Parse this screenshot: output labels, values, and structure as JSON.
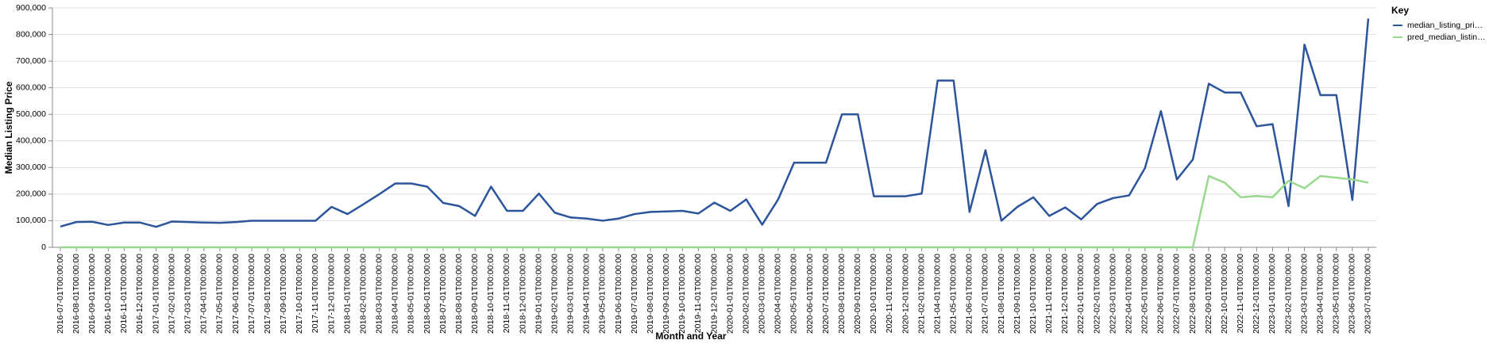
{
  "chart_data": {
    "type": "line",
    "x_label": "Month and Year",
    "y_label": "Median Listing Price",
    "legend_title": "Key",
    "legend": "right",
    "grid": true,
    "categories": [
      "2016-07-01T00:00:00",
      "2016-08-01T00:00:00",
      "2016-09-01T00:00:00",
      "2016-10-01T00:00:00",
      "2016-11-01T00:00:00",
      "2016-12-01T00:00:00",
      "2017-01-01T00:00:00",
      "2017-02-01T00:00:00",
      "2017-03-01T00:00:00",
      "2017-04-01T00:00:00",
      "2017-05-01T00:00:00",
      "2017-06-01T00:00:00",
      "2017-07-01T00:00:00",
      "2017-08-01T00:00:00",
      "2017-09-01T00:00:00",
      "2017-10-01T00:00:00",
      "2017-11-01T00:00:00",
      "2017-12-01T00:00:00",
      "2018-01-01T00:00:00",
      "2018-02-01T00:00:00",
      "2018-03-01T00:00:00",
      "2018-04-01T00:00:00",
      "2018-05-01T00:00:00",
      "2018-06-01T00:00:00",
      "2018-07-01T00:00:00",
      "2018-08-01T00:00:00",
      "2018-09-01T00:00:00",
      "2018-10-01T00:00:00",
      "2018-11-01T00:00:00",
      "2018-12-01T00:00:00",
      "2019-01-01T00:00:00",
      "2019-02-01T00:00:00",
      "2019-03-01T00:00:00",
      "2019-04-01T00:00:00",
      "2019-05-01T00:00:00",
      "2019-06-01T00:00:00",
      "2019-07-01T00:00:00",
      "2019-08-01T00:00:00",
      "2019-09-01T00:00:00",
      "2019-10-01T00:00:00",
      "2019-11-01T00:00:00",
      "2019-12-01T00:00:00",
      "2020-01-01T00:00:00",
      "2020-02-01T00:00:00",
      "2020-03-01T00:00:00",
      "2020-04-01T00:00:00",
      "2020-05-01T00:00:00",
      "2020-06-01T00:00:00",
      "2020-07-01T00:00:00",
      "2020-08-01T00:00:00",
      "2020-09-01T00:00:00",
      "2020-10-01T00:00:00",
      "2020-11-01T00:00:00",
      "2020-12-01T00:00:00",
      "2021-02-01T00:00:00",
      "2021-04-01T00:00:00",
      "2021-05-01T00:00:00",
      "2021-06-01T00:00:00",
      "2021-07-01T00:00:00",
      "2021-08-01T00:00:00",
      "2021-09-01T00:00:00",
      "2021-10-01T00:00:00",
      "2021-11-01T00:00:00",
      "2021-12-01T00:00:00",
      "2022-01-01T00:00:00",
      "2022-02-01T00:00:00",
      "2022-03-01T00:00:00",
      "2022-04-01T00:00:00",
      "2022-05-01T00:00:00",
      "2022-06-01T00:00:00",
      "2022-07-01T00:00:00",
      "2022-08-01T00:00:00",
      "2022-09-01T00:00:00",
      "2022-10-01T00:00:00",
      "2022-11-01T00:00:00",
      "2022-12-01T00:00:00",
      "2023-01-01T00:00:00",
      "2023-02-01T00:00:00",
      "2023-03-01T00:00:00",
      "2023-04-01T00:00:00",
      "2023-05-01T00:00:00",
      "2023-06-01T00:00:00",
      "2023-07-01T00:00:00"
    ],
    "series": [
      {
        "name": "median_listing_pri…",
        "color": "#2c559c",
        "values": [
          78000,
          95000,
          96000,
          84000,
          93000,
          93000,
          77000,
          97000,
          95000,
          93000,
          92000,
          95000,
          100000,
          100000,
          100000,
          100000,
          100000,
          152000,
          125000,
          162000,
          200000,
          240000,
          240000,
          228000,
          167000,
          155000,
          118000,
          228000,
          137000,
          137000,
          202000,
          130000,
          112000,
          108000,
          100000,
          108000,
          125000,
          133000,
          135000,
          137000,
          127000,
          168000,
          137000,
          180000,
          85000,
          180000,
          318000,
          318000,
          318000,
          500000,
          500000,
          192000,
          192000,
          192000,
          202000,
          627000,
          627000,
          133000,
          365000,
          100000,
          152000,
          188000,
          118000,
          150000,
          105000,
          163000,
          185000,
          195000,
          298000,
          512000,
          255000,
          330000,
          615000,
          582000,
          582000,
          455000,
          463000,
          155000,
          762000,
          572000,
          572000,
          178000,
          860000
        ]
      },
      {
        "name": "pred_median_listin…",
        "color": "#98d98e",
        "values": [
          0,
          0,
          0,
          0,
          0,
          0,
          0,
          0,
          0,
          0,
          0,
          0,
          0,
          0,
          0,
          0,
          0,
          0,
          0,
          0,
          0,
          0,
          0,
          0,
          0,
          0,
          0,
          0,
          0,
          0,
          0,
          0,
          0,
          0,
          0,
          0,
          0,
          0,
          0,
          0,
          0,
          0,
          0,
          0,
          0,
          0,
          0,
          0,
          0,
          0,
          0,
          0,
          0,
          0,
          0,
          0,
          0,
          0,
          0,
          0,
          0,
          0,
          0,
          0,
          0,
          0,
          0,
          0,
          0,
          0,
          0,
          0,
          268000,
          243000,
          188000,
          193000,
          188000,
          250000,
          222000,
          268000,
          262000,
          255000,
          243000
        ]
      }
    ],
    "ylim": [
      0,
      900000
    ],
    "yticks": [
      0,
      {
        "value": 100000,
        "label": "100,000"
      },
      {
        "value": 200000,
        "label": "200,000"
      },
      {
        "value": 300000,
        "label": "300,000"
      },
      {
        "value": 400000,
        "label": "400,000"
      },
      {
        "value": 500000,
        "label": "500,000"
      },
      {
        "value": 600000,
        "label": "600,000"
      },
      {
        "value": 700000,
        "label": "700,000"
      },
      {
        "value": 800000,
        "label": "800,000"
      },
      {
        "value": 900000,
        "label": "900,000"
      }
    ]
  }
}
